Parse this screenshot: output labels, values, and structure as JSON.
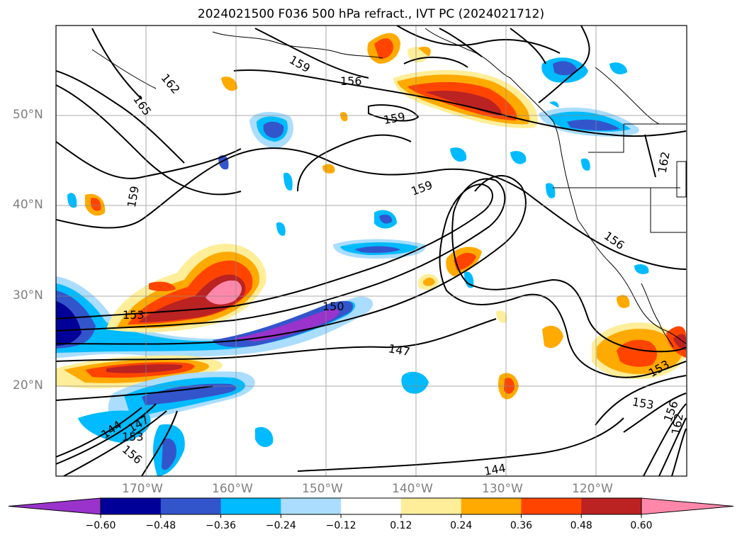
{
  "title": "2024021500 F036 500 hPa refract., IVT PC (2024021712)",
  "lat_labels": [
    "50°N",
    "40°N",
    "30°N",
    "20°N"
  ],
  "lon_labels": [
    "170°W",
    "160°W",
    "150°W",
    "140°W",
    "130°W",
    "120°W"
  ],
  "colorbar": {
    "ticks": [
      "−0.60",
      "−0.48",
      "−0.36",
      "−0.24",
      "−0.12",
      "0.12",
      "0.24",
      "0.36",
      "0.48",
      "0.60"
    ],
    "colors": [
      "#9933cc",
      "#000099",
      "#3355cc",
      "#00bbff",
      "#aaddff",
      "#ffffff",
      "#ffee99",
      "#ffaa00",
      "#ff4400",
      "#bb2222",
      "#ff88aa"
    ]
  },
  "contour_labels": [
    "159",
    "156",
    "162",
    "165",
    "159",
    "159",
    "159",
    "153",
    "150",
    "147",
    "144",
    "147",
    "153",
    "156",
    "144",
    "156",
    "153",
    "156",
    "162",
    "153",
    "162"
  ]
}
